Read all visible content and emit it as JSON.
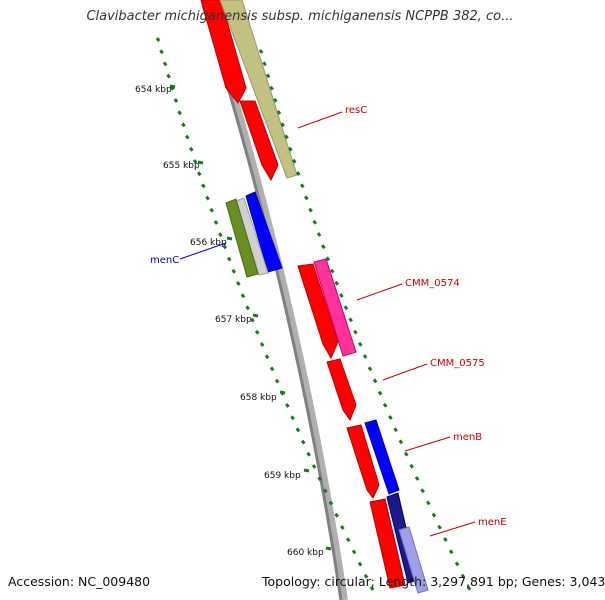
{
  "title": "Clavibacter michiganensis subsp. michiganensis NCPPB 382, co...",
  "footer": {
    "accession": "Accession: NC_009480",
    "summary": "Topology: circular; Length: 3,297,891 bp; Genes: 3,043"
  },
  "colors": {
    "backbone": "#808080",
    "tick": "#1a7a1a",
    "forward_label": "#cc0000",
    "reverse_label": "#0000cc"
  },
  "ticks": [
    {
      "label": "654 kbp",
      "kbp": 654
    },
    {
      "label": "655 kbp",
      "kbp": 655
    },
    {
      "label": "656 kbp",
      "kbp": 656
    },
    {
      "label": "657 kbp",
      "kbp": 657
    },
    {
      "label": "658 kbp",
      "kbp": 658
    },
    {
      "label": "659 kbp",
      "kbp": 659
    },
    {
      "label": "660 kbp",
      "kbp": 660
    }
  ],
  "gene_labels": [
    {
      "name": "resC",
      "strand": "forward"
    },
    {
      "name": "menC",
      "strand": "reverse"
    },
    {
      "name": "CMM_0574",
      "strand": "forward"
    },
    {
      "name": "CMM_0575",
      "strand": "forward"
    },
    {
      "name": "menB",
      "strand": "forward"
    },
    {
      "name": "menE",
      "strand": "forward"
    }
  ]
}
